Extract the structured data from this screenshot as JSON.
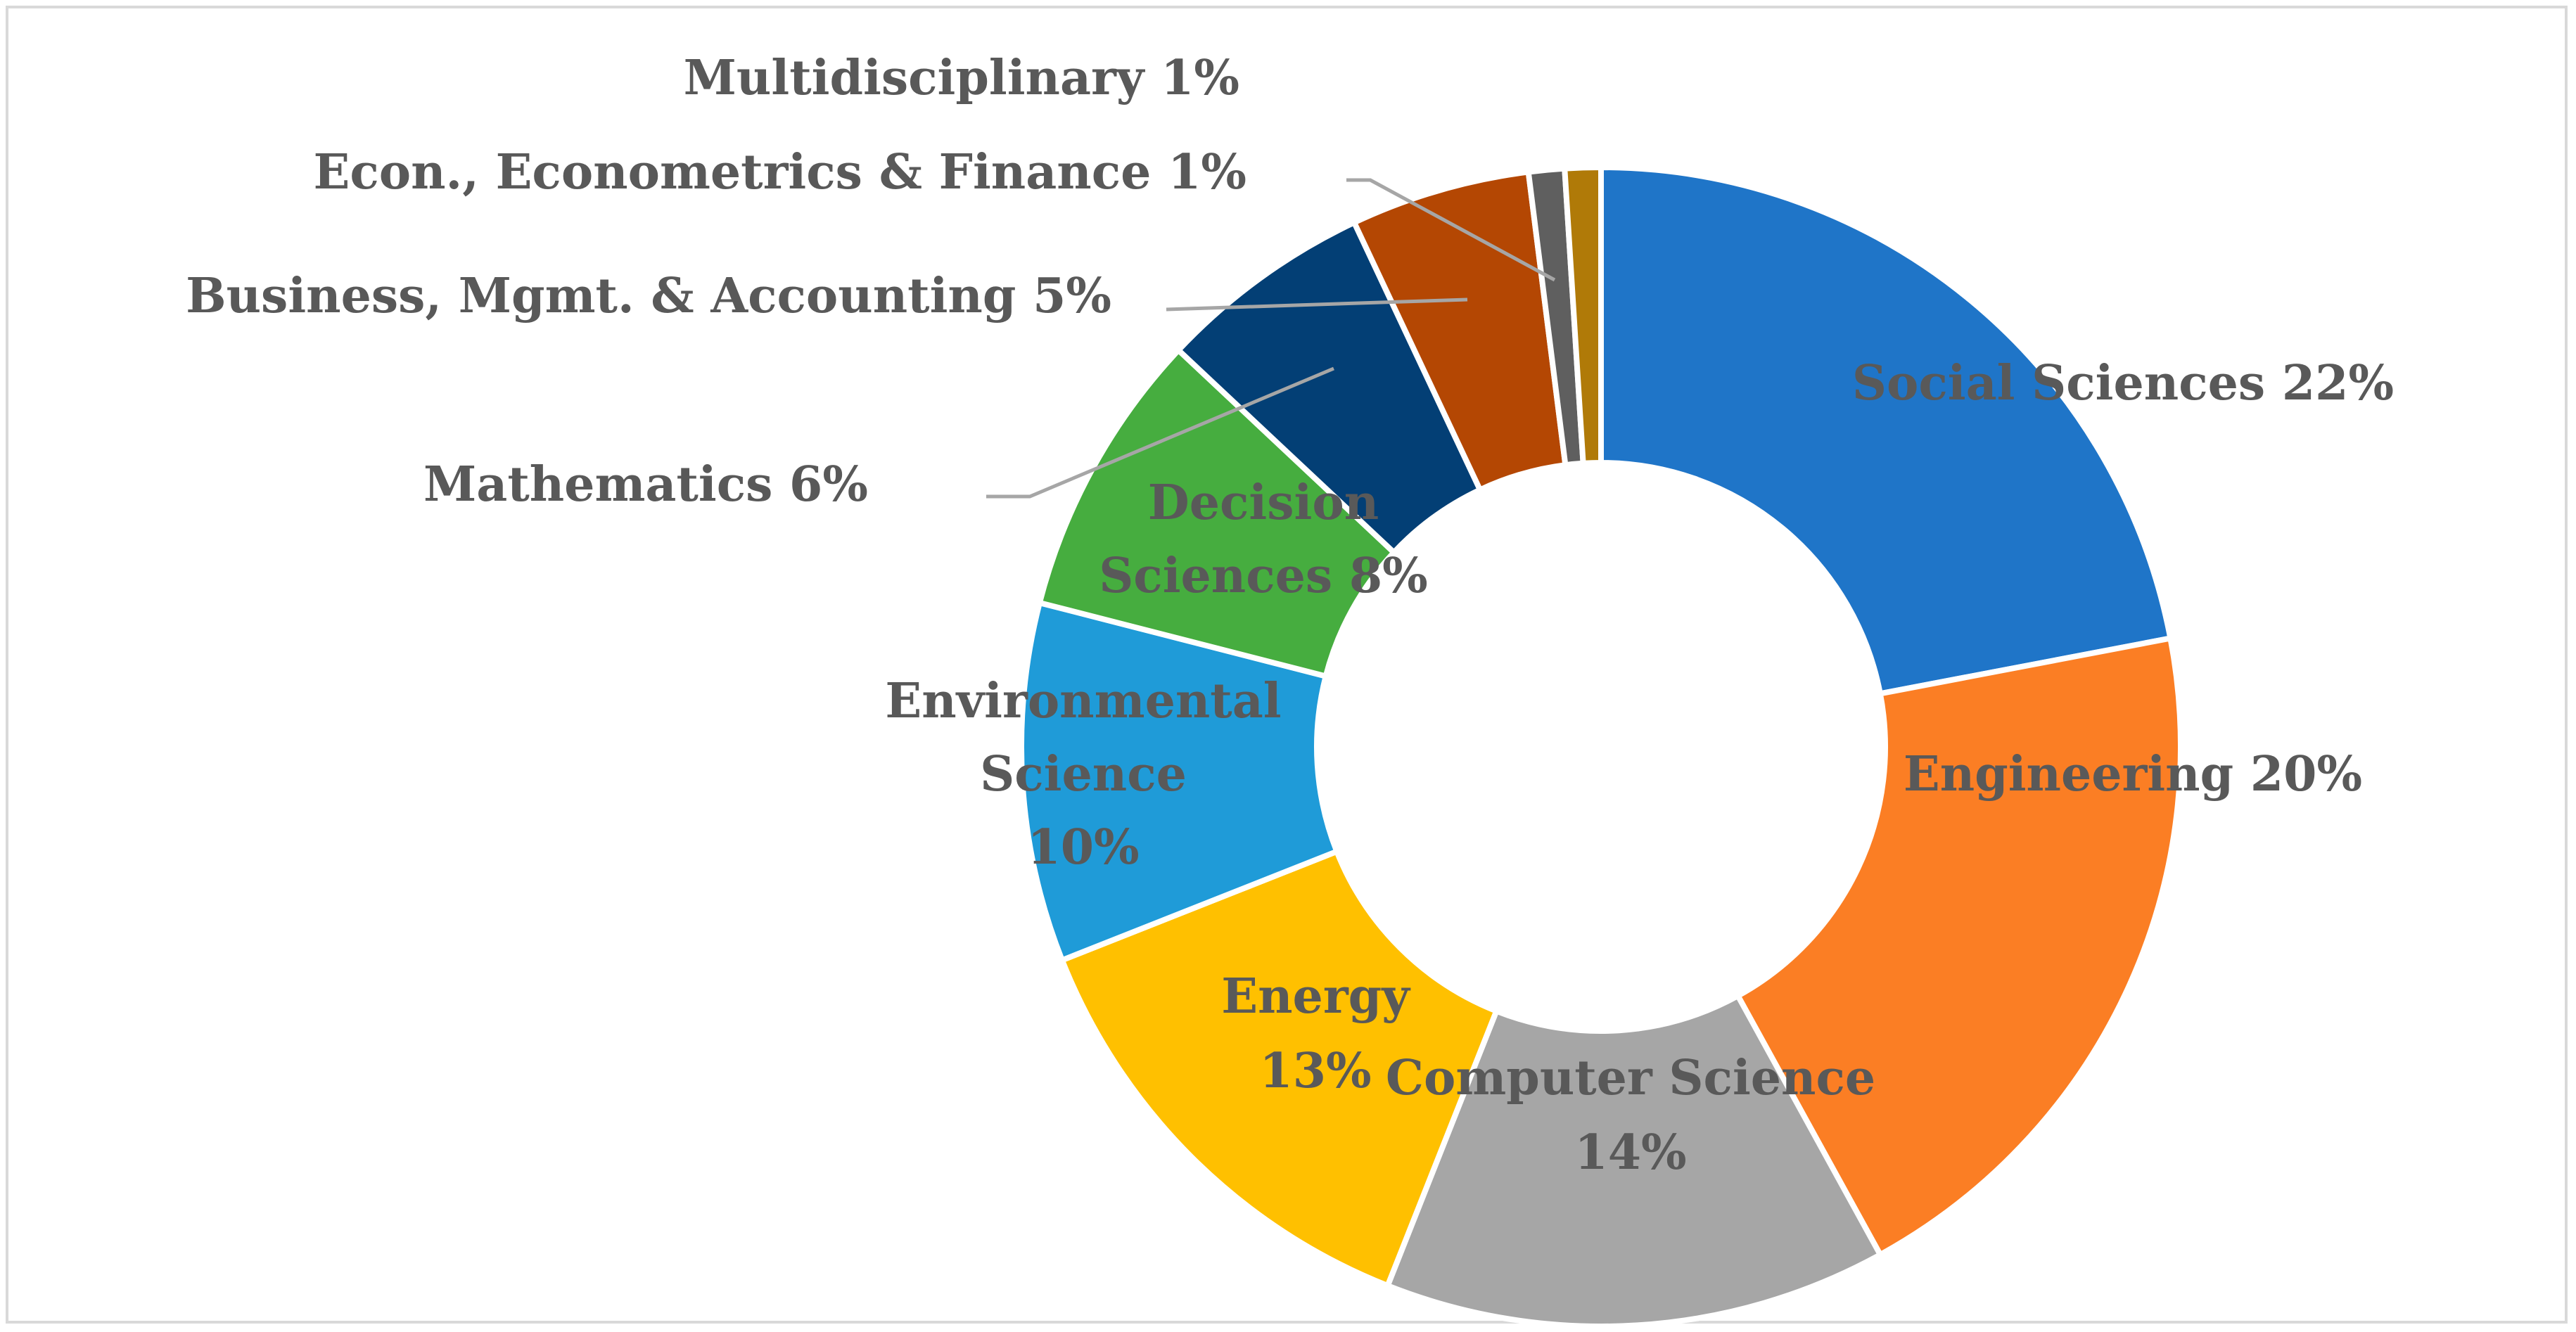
{
  "chart_data": {
    "type": "pie",
    "donut": true,
    "title": "",
    "slices": [
      {
        "name": "Social Sciences",
        "value": 22,
        "label": "Social Sciences 22%",
        "color": "#1f75c8"
      },
      {
        "name": "Engineering",
        "value": 20,
        "label": "Engineering 20%",
        "color": "#fb7e24"
      },
      {
        "name": "Computer Science",
        "value": 14,
        "label": "Computer Science 14%",
        "color": "#a6a6a6"
      },
      {
        "name": "Energy",
        "value": 13,
        "label": "Energy 13%",
        "color": "#ffc000"
      },
      {
        "name": "Environmental Science",
        "value": 10,
        "label": "Environmental Science 10%",
        "color": "#1f9bd8"
      },
      {
        "name": "Decision Sciences",
        "value": 8,
        "label": "Decision Sciences 8%",
        "color": "#46ad3f"
      },
      {
        "name": "Mathematics",
        "value": 6,
        "label": "Mathematics 6%",
        "color": "#033f75"
      },
      {
        "name": "Business, Mgmt. & Accounting",
        "value": 5,
        "label": "Business, Mgmt. & Accounting 5%",
        "color": "#b44703"
      },
      {
        "name": "Econ., Econometrics & Finance",
        "value": 1,
        "label": "Econ., Econometrics & Finance 1%",
        "color": "#5f5f5f"
      },
      {
        "name": "Multidisciplinary",
        "value": 1,
        "label": "Multidisciplinary 1%",
        "color": "#b07a08"
      }
    ],
    "label_color": "#595959",
    "leader_line_color": "#a6a6a6"
  }
}
